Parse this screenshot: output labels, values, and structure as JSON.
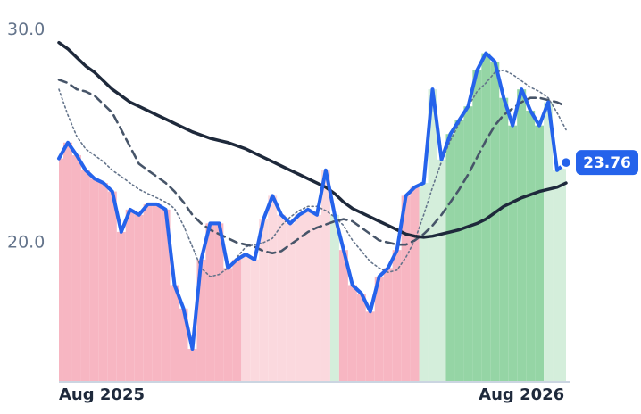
{
  "chart_data": {
    "type": "line",
    "x": [
      0,
      1,
      2,
      3,
      4,
      5,
      6,
      7,
      8,
      9,
      10,
      11,
      12,
      13,
      14,
      15,
      16,
      17,
      18,
      19,
      20,
      21,
      22,
      23,
      24,
      25,
      26,
      27,
      28,
      29,
      30,
      31,
      32,
      33,
      34,
      35,
      36,
      37,
      38,
      39,
      40,
      41,
      42,
      43,
      44,
      45,
      46,
      47,
      48,
      49,
      50,
      51,
      52,
      53,
      54,
      55,
      56,
      57
    ],
    "xlim": [
      0,
      57
    ],
    "xticks": [
      {
        "value": 0,
        "label": "Aug 2025"
      },
      {
        "value": 52,
        "label": "Aug 2026"
      }
    ],
    "ylim": [
      13.45,
      31.4
    ],
    "yticks": [
      {
        "value": 20,
        "label": "20.0"
      },
      {
        "value": 30,
        "label": "30.0"
      }
    ],
    "series": [
      {
        "color": "#2563eb",
        "style": "solid",
        "last_marker": true,
        "fill_colors": [
          "#f7b6c2",
          "#f7b6c2",
          "#f7b6c2",
          "#f7b6c2",
          "#f7b6c2",
          "#f7b6c2",
          "#f7b6c2",
          "#f7b6c2",
          "#f7b6c2",
          "#f7b6c2",
          "#f7b6c2",
          "#f7b6c2",
          "#f7b6c2",
          "#f7b6c2",
          "#f7b6c2",
          "#f7b6c2",
          "#f7b6c2",
          "#f7b6c2",
          "#f7b6c2",
          "#f7b6c2",
          "#f7b6c2",
          "#fbd9de",
          "#fbd9de",
          "#fbd9de",
          "#fbd9de",
          "#fbd9de",
          "#fbd9de",
          "#fbd9de",
          "#fbd9de",
          "#fbd9de",
          "#fbd9de",
          "#d4eedb",
          "#f7b6c2",
          "#f7b6c2",
          "#f7b6c2",
          "#f7b6c2",
          "#f7b6c2",
          "#f7b6c2",
          "#f7b6c2",
          "#f7b6c2",
          "#f7b6c2",
          "#d4eedb",
          "#d4eedb",
          "#d4eedb",
          "#95d5a5",
          "#95d5a5",
          "#95d5a5",
          "#95d5a5",
          "#95d5a5",
          "#95d5a5",
          "#95d5a5",
          "#95d5a5",
          "#95d5a5",
          "#95d5a5",
          "#95d5a5",
          "#d4eedb",
          "#d4eedb",
          "#d4eedb"
        ],
        "values": [
          23.95,
          24.7,
          24.1,
          23.4,
          23.0,
          22.8,
          22.4,
          20.5,
          21.55,
          21.3,
          21.8,
          21.8,
          21.55,
          18.0,
          16.9,
          15.0,
          19.2,
          20.9,
          20.9,
          18.8,
          19.2,
          19.45,
          19.2,
          21.1,
          22.2,
          21.3,
          20.9,
          21.3,
          21.55,
          21.3,
          23.4,
          21.3,
          19.65,
          18.0,
          17.6,
          16.75,
          18.4,
          18.8,
          19.65,
          22.2,
          22.6,
          22.8,
          27.2,
          23.9,
          25.1,
          25.75,
          26.4,
          28.1,
          28.9,
          28.5,
          26.8,
          25.5,
          27.2,
          26.2,
          25.5,
          26.6,
          23.4,
          23.76
        ]
      },
      {
        "color": "#1e293b",
        "style": "solid",
        "values": [
          29.4,
          29.1,
          28.7,
          28.3,
          28.0,
          27.6,
          27.2,
          26.9,
          26.6,
          26.4,
          26.2,
          26.0,
          25.8,
          25.6,
          25.4,
          25.2,
          25.05,
          24.9,
          24.8,
          24.7,
          24.55,
          24.4,
          24.2,
          24.0,
          23.8,
          23.6,
          23.4,
          23.2,
          23.0,
          22.8,
          22.6,
          22.3,
          21.9,
          21.6,
          21.4,
          21.2,
          21.0,
          20.8,
          20.6,
          20.4,
          20.3,
          20.25,
          20.3,
          20.4,
          20.5,
          20.6,
          20.75,
          20.9,
          21.1,
          21.4,
          21.7,
          21.9,
          22.1,
          22.25,
          22.4,
          22.5,
          22.6,
          22.8
        ]
      },
      {
        "color": "#475569",
        "style": "dashed",
        "values": [
          27.65,
          27.5,
          27.2,
          27.1,
          26.9,
          26.5,
          26.1,
          25.3,
          24.5,
          23.7,
          23.4,
          23.1,
          22.8,
          22.4,
          21.9,
          21.3,
          20.9,
          20.6,
          20.4,
          20.2,
          20.0,
          19.9,
          19.8,
          19.6,
          19.5,
          19.6,
          19.9,
          20.2,
          20.5,
          20.7,
          20.85,
          21.0,
          21.1,
          21.0,
          20.7,
          20.4,
          20.1,
          20.0,
          19.9,
          19.9,
          20.1,
          20.4,
          20.8,
          21.3,
          21.9,
          22.5,
          23.2,
          24.0,
          24.8,
          25.5,
          26.0,
          26.3,
          26.6,
          26.8,
          26.8,
          26.7,
          26.6,
          26.4
        ]
      },
      {
        "color": "#64748b",
        "style": "dotted",
        "values": [
          27.2,
          26.0,
          25.0,
          24.4,
          24.1,
          23.8,
          23.4,
          23.1,
          22.8,
          22.5,
          22.3,
          22.1,
          21.9,
          21.6,
          20.8,
          19.8,
          18.8,
          18.4,
          18.5,
          18.8,
          19.3,
          19.8,
          19.9,
          20.0,
          20.2,
          20.8,
          21.2,
          21.5,
          21.7,
          21.7,
          21.5,
          21.2,
          20.8,
          20.1,
          19.6,
          19.1,
          18.8,
          18.6,
          18.7,
          19.3,
          20.1,
          21.3,
          22.6,
          23.8,
          24.8,
          25.6,
          26.4,
          27.1,
          27.5,
          28.0,
          28.1,
          27.9,
          27.6,
          27.3,
          27.1,
          26.8,
          26.1,
          25.3
        ]
      }
    ]
  }
}
